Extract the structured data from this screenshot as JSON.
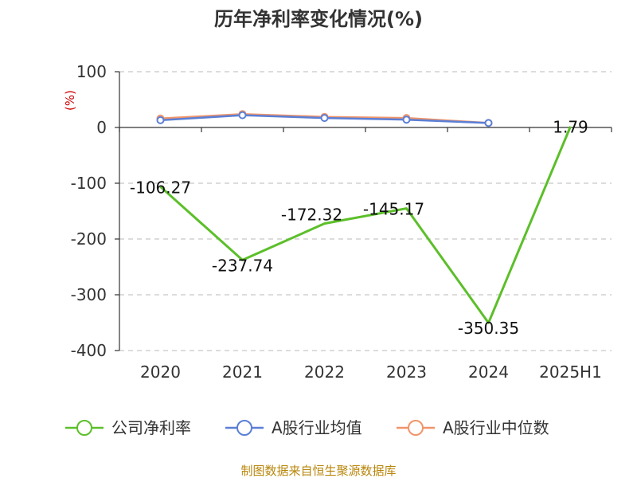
{
  "chart_data": {
    "type": "line",
    "title": "历年净利率变化情况(%)",
    "y_unit": "(%)",
    "categories": [
      "2020",
      "2021",
      "2022",
      "2023",
      "2024",
      "2025H1"
    ],
    "y_ticks": [
      "100",
      "0",
      "-100",
      "-200",
      "-300",
      "-400"
    ],
    "ylim": [
      -400,
      100
    ],
    "grid": true,
    "legend_position": "bottom",
    "series": [
      {
        "name": "公司净利率",
        "color": "#5cbf2a",
        "values": [
          -106.27,
          -237.74,
          -172.32,
          -145.17,
          -350.35,
          1.79
        ],
        "labels": [
          "-106.27",
          "-237.74",
          "-172.32",
          "-145.17",
          "-350.35",
          "1.79"
        ]
      },
      {
        "name": "A股行业均值",
        "color": "#5b7fd6",
        "values": [
          13,
          22,
          17,
          14,
          8,
          null
        ]
      },
      {
        "name": "A股行业中位数",
        "color": "#f0956a",
        "values": [
          16,
          24,
          19,
          17,
          8,
          null
        ]
      }
    ]
  },
  "source": "制图数据来自恒生聚源数据库"
}
